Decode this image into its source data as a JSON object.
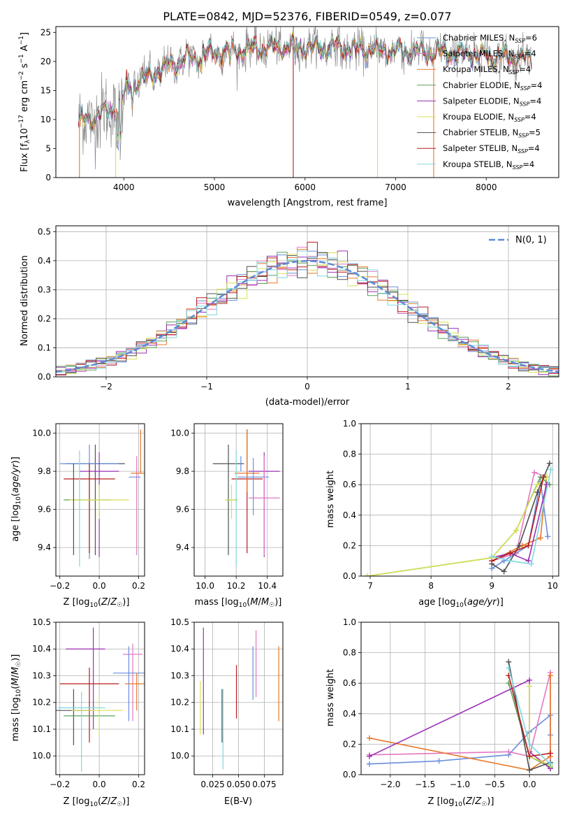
{
  "colors": {
    "Chabrier MILES": "#6a8fdc",
    "Salpeter MILES": "#e377c2",
    "Kroupa MILES": "#e8792a",
    "Chabrier ELODIE": "#5aa05a",
    "Salpeter ELODIE": "#9b30b4",
    "Kroupa ELODIE": "#d8e050",
    "Chabrier STELIB": "#505050",
    "Salpeter STELIB": "#b81c1c",
    "Kroupa STELIB": "#7fd8df",
    "spectrum": "#8c8c8c",
    "normal": "#5b8bd6"
  },
  "chart_data": [
    {
      "id": "spectrum",
      "type": "line",
      "title": "PLATE=0842, MJD=52376, FIBERID=0549, z=0.077",
      "xlabel": "wavelength [Angstrom, rest frame]",
      "ylabel": "Flux [f_λ10^-17 erg cm^-2 s^-1 A^-1]",
      "xlim": [
        3250,
        8800
      ],
      "ylim": [
        0,
        26
      ],
      "xticks": [
        4000,
        5000,
        6000,
        7000,
        8000
      ],
      "yticks": [
        0,
        5,
        10,
        15,
        20,
        25
      ],
      "legend_position": "upper-right",
      "legend": [
        {
          "label": "Chabrier MILES, N",
          "sub": "SSP",
          "tail": "=6"
        },
        {
          "label": "Salpeter MILES, N",
          "sub": "SSP",
          "tail": "=4"
        },
        {
          "label": "Kroupa MILES, N",
          "sub": "SSP",
          "tail": "=4"
        },
        {
          "label": "Chabrier ELODIE, N",
          "sub": "SSP",
          "tail": "=4"
        },
        {
          "label": "Salpeter ELODIE, N",
          "sub": "SSP",
          "tail": "=4"
        },
        {
          "label": "Kroupa ELODIE, N",
          "sub": "SSP",
          "tail": "=4"
        },
        {
          "label": "Chabrier STELIB, N",
          "sub": "SSP",
          "tail": "=5"
        },
        {
          "label": "Salpeter STELIB, N",
          "sub": "SSP",
          "tail": "=4"
        },
        {
          "label": "Kroupa STELIB, N",
          "sub": "SSP",
          "tail": "=4"
        }
      ],
      "continuum": [
        [
          3500,
          9.5
        ],
        [
          3700,
          10.5
        ],
        [
          3850,
          11.5
        ],
        [
          3950,
          12.5
        ],
        [
          4050,
          15.5
        ],
        [
          4300,
          17.5
        ],
        [
          4600,
          20.0
        ],
        [
          5000,
          21.5
        ],
        [
          5500,
          22.3
        ],
        [
          6000,
          22.5
        ],
        [
          6500,
          22.2
        ],
        [
          7000,
          21.8
        ],
        [
          7500,
          21.5
        ],
        [
          8000,
          21.0
        ],
        [
          8500,
          20.5
        ]
      ]
    },
    {
      "id": "residuals",
      "type": "histogram",
      "xlabel": "(data-model)/error",
      "ylabel": "Normed distribution",
      "xlim": [
        -2.5,
        2.5
      ],
      "ylim": [
        0,
        0.52
      ],
      "xticks": [
        -2,
        -1,
        0,
        1,
        2
      ],
      "yticks": [
        0.0,
        0.1,
        0.2,
        0.3,
        0.4,
        0.5
      ],
      "grid": true,
      "legend_position": "upper-right",
      "legend_label": "N(0, 1)",
      "normal_curve": {
        "mean": 0,
        "sigma": 1
      }
    },
    {
      "id": "age_vs_Z",
      "type": "errorbar",
      "xlabel": "Z [log10(Z/Z☉)]",
      "ylabel": "age [log10(age/yr)]",
      "xlim": [
        -0.22,
        0.23
      ],
      "ylim": [
        9.25,
        10.05
      ],
      "xticks": [
        -0.2,
        0.0,
        0.2
      ],
      "yticks": [
        9.4,
        9.6,
        9.8,
        10.0
      ],
      "grid": true,
      "points": [
        {
          "series": "Chabrier STELIB",
          "x": -0.02,
          "xerr": 0.15,
          "y": 9.84,
          "yerr": [
            0.48,
            0.1
          ]
        },
        {
          "series": "Chabrier MILES",
          "x": -0.05,
          "xerr": 0.15,
          "y": 9.84,
          "yerr": [
            0.5,
            0.1
          ]
        },
        {
          "series": "Salpeter ELODIE",
          "x": 0.0,
          "xerr": 0.1,
          "y": 9.8,
          "yerr": [
            0.45,
            0.1
          ]
        },
        {
          "series": "Salpeter MILES",
          "x": 0.19,
          "xerr": 0.0,
          "y": 9.66,
          "yerr": [
            0.3,
            0.22
          ]
        },
        {
          "series": "Salpeter STELIB",
          "x": -0.05,
          "xerr": 0.13,
          "y": 9.76,
          "yerr": [
            0.39,
            0.08
          ]
        },
        {
          "series": "Chabrier ELODIE",
          "x": -0.06,
          "xerr": 0.12,
          "y": 9.65,
          "yerr": [
            0.0,
            0.0
          ]
        },
        {
          "series": "Kroupa ELODIE",
          "x": 0.0,
          "xerr": 0.15,
          "y": 9.65,
          "yerr": [
            0.1,
            0.08
          ]
        },
        {
          "series": "Kroupa STELIB",
          "x": -0.1,
          "xerr": 0.0,
          "y": 9.85,
          "yerr": [
            0.55,
            0.06
          ]
        },
        {
          "series": "Kroupa MILES",
          "x": 0.21,
          "xerr": 0.05,
          "y": 9.79,
          "yerr": [
            0.0,
            0.23
          ]
        },
        {
          "series": "Chabrier MILES",
          "x": 0.18,
          "xerr": 0.03,
          "y": 9.77,
          "yerr": [
            0.0,
            0.0
          ]
        },
        {
          "series": "Chabrier STELIB",
          "x": -0.13,
          "xerr": 0.0,
          "y": 9.65,
          "yerr": [
            0.29,
            0.19
          ]
        }
      ]
    },
    {
      "id": "age_vs_mass",
      "type": "errorbar",
      "xlabel": "mass [log10(M/M☉)]",
      "ylabel": "",
      "xlim": [
        9.93,
        10.5
      ],
      "ylim": [
        9.25,
        10.05
      ],
      "xticks": [
        10.0,
        10.2,
        10.4
      ],
      "yticks": [
        9.4,
        9.6,
        9.8,
        10.0
      ],
      "grid": true,
      "points": [
        {
          "series": "Kroupa STELIB",
          "x": 10.03,
          "xerr": 0.0,
          "y": 9.83,
          "yerr": [
            0.0,
            0.0
          ]
        },
        {
          "series": "Chabrier STELIB",
          "x": 10.15,
          "xerr": 0.1,
          "y": 9.84,
          "yerr": [
            0.48,
            0.1
          ]
        },
        {
          "series": "Salpeter STELIB",
          "x": 10.27,
          "xerr": 0.1,
          "y": 9.76,
          "yerr": [
            0.39,
            0.26
          ]
        },
        {
          "series": "Salpeter ELODIE",
          "x": 10.38,
          "xerr": 0.1,
          "y": 9.8,
          "yerr": [
            0.45,
            0.1
          ]
        },
        {
          "series": "Kroupa MILES",
          "x": 10.27,
          "xerr": 0.08,
          "y": 9.79,
          "yerr": [
            0.1,
            0.23
          ]
        },
        {
          "series": "Chabrier MILES",
          "x": 10.31,
          "xerr": 0.1,
          "y": 9.77,
          "yerr": [
            0.2,
            0.1
          ]
        },
        {
          "series": "Salpeter MILES",
          "x": 10.38,
          "xerr": 0.1,
          "y": 9.66,
          "yerr": [
            0.3,
            0.22
          ]
        },
        {
          "series": "Chabrier ELODIE",
          "x": 10.17,
          "xerr": 0.04,
          "y": 9.65,
          "yerr": [
            0.0,
            0.0
          ]
        },
        {
          "series": "Kroupa ELODIE",
          "x": 10.17,
          "xerr": 0.04,
          "y": 9.65,
          "yerr": [
            0.1,
            0.08
          ]
        },
        {
          "series": "Kroupa STELIB",
          "x": 10.2,
          "xerr": 0.0,
          "y": 9.85,
          "yerr": [
            0.55,
            0.06
          ]
        },
        {
          "series": "Chabrier MILES",
          "x": 10.23,
          "xerr": 0.0,
          "y": 9.8,
          "yerr": [
            0.0,
            0.08
          ]
        }
      ]
    },
    {
      "id": "weight_vs_age",
      "type": "line",
      "xlabel": "age [log10(age/yr)]",
      "ylabel": "mass weight",
      "xlim": [
        6.85,
        10.1
      ],
      "ylim": [
        0,
        1.0
      ],
      "xticks": [
        7,
        8,
        9,
        10
      ],
      "yticks": [
        0.0,
        0.2,
        0.4,
        0.6,
        0.8,
        1.0
      ],
      "grid": true,
      "series": [
        {
          "name": "Chabrier MILES",
          "x": [
            9.0,
            9.2,
            9.4,
            9.6,
            9.8,
            9.92
          ],
          "y": [
            0.05,
            0.1,
            0.15,
            0.2,
            0.62,
            0.26
          ]
        },
        {
          "name": "Salpeter MILES",
          "x": [
            9.0,
            9.4,
            9.7,
            9.9
          ],
          "y": [
            0.1,
            0.15,
            0.68,
            0.65
          ]
        },
        {
          "name": "Kroupa MILES",
          "x": [
            9.0,
            9.5,
            9.8,
            9.9
          ],
          "y": [
            0.1,
            0.2,
            0.25,
            0.65
          ]
        },
        {
          "name": "Chabrier ELODIE",
          "x": [
            6.95,
            9.0,
            9.4,
            9.8,
            9.95
          ],
          "y": [
            0.0,
            0.12,
            0.3,
            0.65,
            0.6
          ]
        },
        {
          "name": "Salpeter ELODIE",
          "x": [
            9.0,
            9.3,
            9.6,
            9.9
          ],
          "y": [
            0.12,
            0.15,
            0.1,
            0.6
          ]
        },
        {
          "name": "Kroupa ELODIE",
          "x": [
            6.95,
            9.0,
            9.4,
            9.75,
            9.9
          ],
          "y": [
            0.0,
            0.12,
            0.3,
            0.6,
            0.65
          ]
        },
        {
          "name": "Chabrier STELIB",
          "x": [
            9.0,
            9.2,
            9.45,
            9.75,
            9.95
          ],
          "y": [
            0.08,
            0.03,
            0.2,
            0.55,
            0.74
          ]
        },
        {
          "name": "Salpeter STELIB",
          "x": [
            9.0,
            9.3,
            9.6,
            9.85
          ],
          "y": [
            0.1,
            0.15,
            0.2,
            0.65
          ]
        },
        {
          "name": "Kroupa STELIB",
          "x": [
            9.0,
            9.3,
            9.65,
            9.97
          ],
          "y": [
            0.13,
            0.1,
            0.08,
            0.7
          ]
        }
      ]
    },
    {
      "id": "mass_vs_Z",
      "type": "errorbar",
      "xlabel": "Z [log10(Z/Z☉)]",
      "ylabel": "mass [log10(M/M☉)]",
      "xlim": [
        -0.22,
        0.23
      ],
      "ylim": [
        9.93,
        10.5
      ],
      "xticks": [
        -0.2,
        0.0,
        0.2
      ],
      "yticks": [
        10.0,
        10.1,
        10.2,
        10.3,
        10.4,
        10.5
      ],
      "grid": true,
      "points": [
        {
          "series": "Salpeter ELODIE",
          "x": -0.07,
          "xerr": 0.1,
          "y": 10.4,
          "yerr": [
            0.0,
            0.0
          ]
        },
        {
          "series": "Salpeter ELODIE",
          "x": -0.03,
          "xerr": 0.0,
          "y": 10.4,
          "yerr": [
            0.3,
            0.08
          ]
        },
        {
          "series": "Salpeter MILES",
          "x": 0.17,
          "xerr": 0.05,
          "y": 10.38,
          "yerr": [
            0.25,
            0.04
          ]
        },
        {
          "series": "Chabrier MILES",
          "x": 0.15,
          "xerr": 0.08,
          "y": 10.31,
          "yerr": [
            0.18,
            0.1
          ]
        },
        {
          "series": "Kroupa MILES",
          "x": 0.19,
          "xerr": 0.06,
          "y": 10.27,
          "yerr": [
            0.1,
            0.04
          ]
        },
        {
          "series": "Salpeter STELIB",
          "x": -0.05,
          "xerr": 0.15,
          "y": 10.27,
          "yerr": [
            0.22,
            0.06
          ]
        },
        {
          "series": "Chabrier STELIB",
          "x": -0.13,
          "xerr": 0.09,
          "y": 10.17,
          "yerr": [
            0.13,
            0.08
          ]
        },
        {
          "series": "Kroupa ELODIE",
          "x": -0.01,
          "xerr": 0.13,
          "y": 10.17,
          "yerr": [
            0.0,
            0.0
          ]
        },
        {
          "series": "Chabrier ELODIE",
          "x": -0.05,
          "xerr": 0.13,
          "y": 10.15,
          "yerr": [
            0.0,
            0.0
          ]
        },
        {
          "series": "Kroupa STELIB",
          "x": -0.09,
          "xerr": 0.12,
          "y": 10.18,
          "yerr": [
            0.24,
            0.06
          ]
        },
        {
          "series": "Kroupa ELODIE",
          "x": 0.0,
          "xerr": 0.0,
          "y": 10.15,
          "yerr": [
            0.08,
            0.07
          ]
        }
      ]
    },
    {
      "id": "mass_vs_EBV",
      "type": "errorbar",
      "xlabel": "E(B-V)",
      "ylabel": "",
      "xlim": [
        0.007,
        0.093
      ],
      "ylim": [
        9.93,
        10.5
      ],
      "xticks": [
        0.025,
        0.05,
        0.075
      ],
      "xticklabels": [
        "0.025",
        "0.050",
        "0.075"
      ],
      "yticks": [
        10.0,
        10.1,
        10.2,
        10.3,
        10.4,
        10.5
      ],
      "grid": true,
      "points": [
        {
          "series": "Kroupa ELODIE",
          "x": 0.013,
          "y": 10.18,
          "yerr": [
            0.1,
            0.1
          ]
        },
        {
          "series": "Salpeter ELODIE",
          "x": 0.016,
          "y": 10.3,
          "yerr": [
            0.22,
            0.18
          ]
        },
        {
          "series": "Chabrier STELIB",
          "x": 0.034,
          "y": 10.15,
          "yerr": [
            0.1,
            0.1
          ]
        },
        {
          "series": "Kroupa STELIB",
          "x": 0.035,
          "y": 10.1,
          "yerr": [
            0.15,
            0.15
          ]
        },
        {
          "series": "Salpeter STELIB",
          "x": 0.048,
          "y": 10.24,
          "yerr": [
            0.1,
            0.1
          ]
        },
        {
          "series": "Chabrier MILES",
          "x": 0.064,
          "y": 10.31,
          "yerr": [
            0.1,
            0.1
          ]
        },
        {
          "series": "Salpeter MILES",
          "x": 0.067,
          "y": 10.37,
          "yerr": [
            0.15,
            0.1
          ]
        },
        {
          "series": "Kroupa MILES",
          "x": 0.089,
          "y": 10.27,
          "yerr": [
            0.14,
            0.14
          ]
        }
      ]
    },
    {
      "id": "weight_vs_Z",
      "type": "line",
      "xlabel": "Z [log10(Z/Z☉)]",
      "ylabel": "mass weight",
      "xlim": [
        -2.42,
        0.42
      ],
      "ylim": [
        0,
        1.0
      ],
      "xticks": [
        -2.0,
        -1.5,
        -1.0,
        -0.5,
        0.0
      ],
      "yticks": [
        0.0,
        0.2,
        0.4,
        0.6,
        0.8,
        1.0
      ],
      "grid": true,
      "series": [
        {
          "name": "Chabrier MILES",
          "x": [
            -2.3,
            -1.3,
            -0.3,
            0.0,
            0.3,
            0.3
          ],
          "y": [
            0.07,
            0.09,
            0.13,
            0.28,
            0.39,
            0.26
          ]
        },
        {
          "name": "Salpeter MILES",
          "x": [
            -2.3,
            -0.3,
            0.0,
            0.3,
            0.3
          ],
          "y": [
            0.13,
            0.15,
            0.12,
            0.67,
            0.04
          ]
        },
        {
          "name": "Kroupa MILES",
          "x": [
            -2.3,
            0.0,
            0.3,
            0.3
          ],
          "y": [
            0.24,
            0.03,
            0.12,
            0.65
          ]
        },
        {
          "name": "Chabrier ELODIE",
          "x": [
            -0.3,
            0.0,
            0.3
          ],
          "y": [
            0.6,
            0.12,
            0.05
          ]
        },
        {
          "name": "Salpeter ELODIE",
          "x": [
            -2.3,
            0.0,
            0.0,
            0.3
          ],
          "y": [
            0.12,
            0.62,
            0.15,
            0.04
          ]
        },
        {
          "name": "Kroupa ELODIE",
          "x": [
            0.0,
            0.0,
            0.3
          ],
          "y": [
            0.58,
            0.12,
            0.06
          ]
        },
        {
          "name": "Chabrier STELIB",
          "x": [
            -0.3,
            0.0,
            0.3
          ],
          "y": [
            0.74,
            0.03,
            0.08
          ]
        },
        {
          "name": "Salpeter STELIB",
          "x": [
            -0.3,
            0.0,
            0.3
          ],
          "y": [
            0.65,
            0.12,
            0.14
          ]
        },
        {
          "name": "Kroupa STELIB",
          "x": [
            -0.3,
            0.0,
            0.3
          ],
          "y": [
            0.7,
            0.2,
            0.07
          ]
        }
      ]
    }
  ]
}
